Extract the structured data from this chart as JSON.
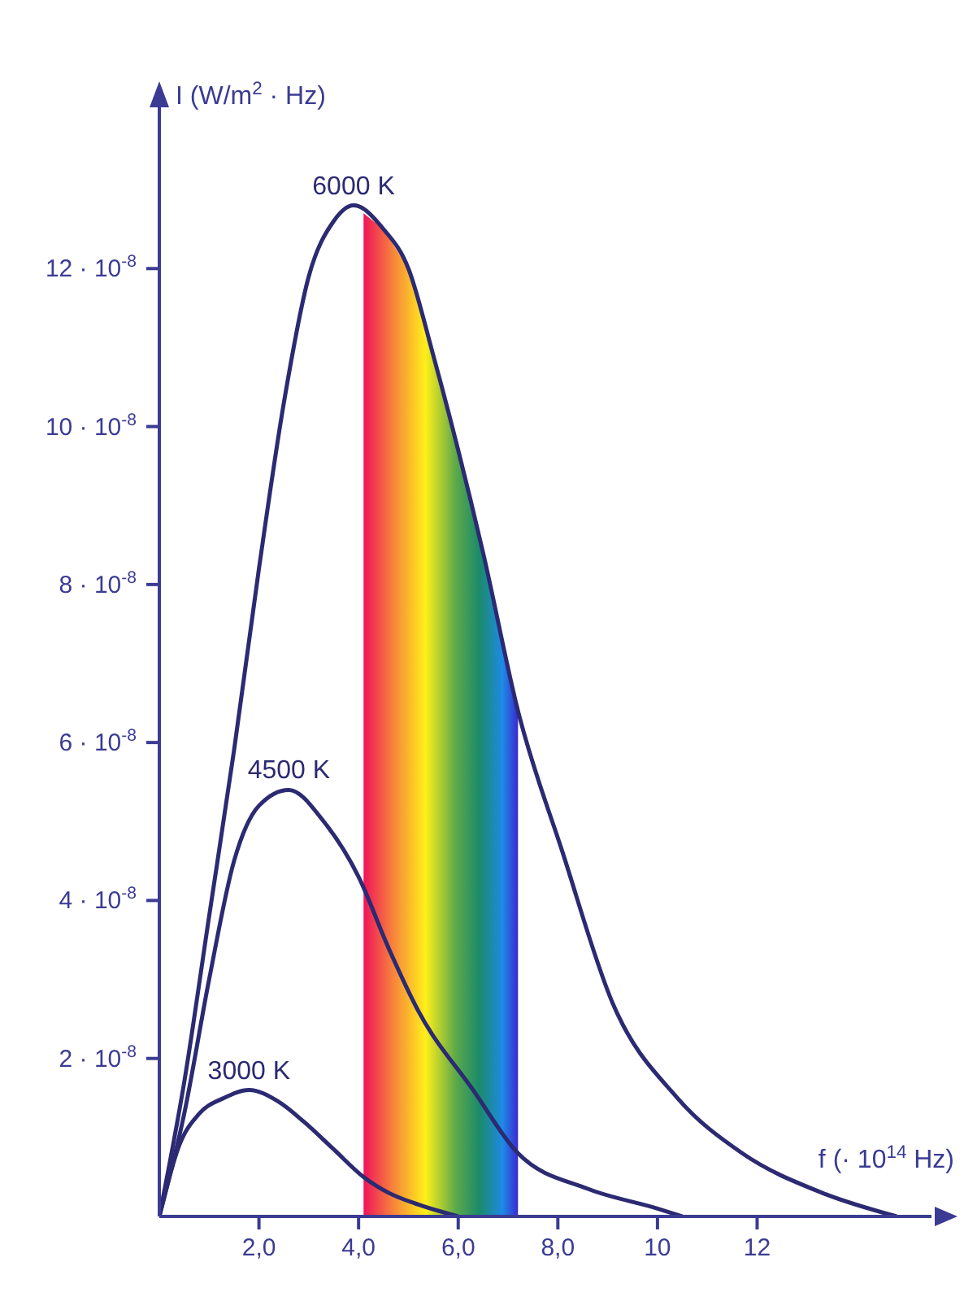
{
  "chart_data": {
    "type": "line",
    "xlabel": "f (· 10$^{14}$ Hz)",
    "ylabel": "I (W/m$^{2}$ · Hz)",
    "xlim": [
      0,
      15.5
    ],
    "ylim": [
      0,
      1.4e-07
    ],
    "xticks": [
      {
        "value": 2,
        "label": "2,0"
      },
      {
        "value": 4,
        "label": "4,0"
      },
      {
        "value": 6,
        "label": "6,0"
      },
      {
        "value": 8,
        "label": "8,0"
      },
      10,
      12
    ],
    "yticks": [
      {
        "value": 2e-08,
        "label": "2 · 10$^{-8}$"
      },
      {
        "value": 4e-08,
        "label": "4 · 10$^{-8}$"
      },
      {
        "value": 6e-08,
        "label": "6 · 10$^{-8}$"
      },
      {
        "value": 8e-08,
        "label": "8 · 10$^{-8}$"
      },
      {
        "value": 1e-07,
        "label": "10 · 10$^{-8}$"
      },
      {
        "value": 1.2e-07,
        "label": "12 · 10$^{-8}$"
      }
    ],
    "bands": [
      {
        "axis": "x",
        "from": 4.1,
        "to": 7.2
      }
    ],
    "series": [
      {
        "name": "6000 K",
        "color": "#2b2a72",
        "x": [
          0,
          0.5,
          1.0,
          1.5,
          2.0,
          2.5,
          3.0,
          3.5,
          3.9,
          4.5,
          5.0,
          5.5,
          6.0,
          6.5,
          7.2,
          8.1,
          9.1,
          10.4,
          11.7,
          13.3,
          14.8
        ],
        "values": [
          0,
          1.7e-08,
          3.8e-08,
          5.9e-08,
          8.2e-08,
          1.03e-07,
          1.19e-07,
          1.26e-07,
          1.28e-07,
          1.25e-07,
          1.2e-07,
          1.09e-07,
          9.7e-08,
          8.4e-08,
          6.4e-08,
          4.6e-08,
          2.7e-08,
          1.5e-08,
          8e-09,
          3e-09,
          0
        ]
      },
      {
        "name": "4500 K",
        "color": "#2b2a72",
        "x": [
          0,
          0.5,
          1.0,
          1.5,
          2.0,
          2.6,
          3.3,
          4.0,
          4.6,
          5.2,
          6.3,
          7.2,
          8.6,
          10.0,
          10.5
        ],
        "values": [
          0,
          1.3e-08,
          3e-08,
          4.5e-08,
          5.2e-08,
          5.4e-08,
          5e-08,
          4.3e-08,
          3.4e-08,
          2.6e-08,
          1.6e-08,
          8e-09,
          3.5e-09,
          1e-09,
          0
        ]
      },
      {
        "name": "3000 K",
        "color": "#2b2a72",
        "x": [
          0,
          0.4,
          0.8,
          1.3,
          1.8,
          2.4,
          2.9,
          3.5,
          4.1,
          4.6,
          5.2,
          6.0
        ],
        "values": [
          0,
          9e-09,
          1.3e-08,
          1.5e-08,
          1.6e-08,
          1.45e-08,
          1.2e-08,
          8.5e-09,
          5e-09,
          3e-09,
          1.5e-09,
          0
        ]
      }
    ]
  }
}
